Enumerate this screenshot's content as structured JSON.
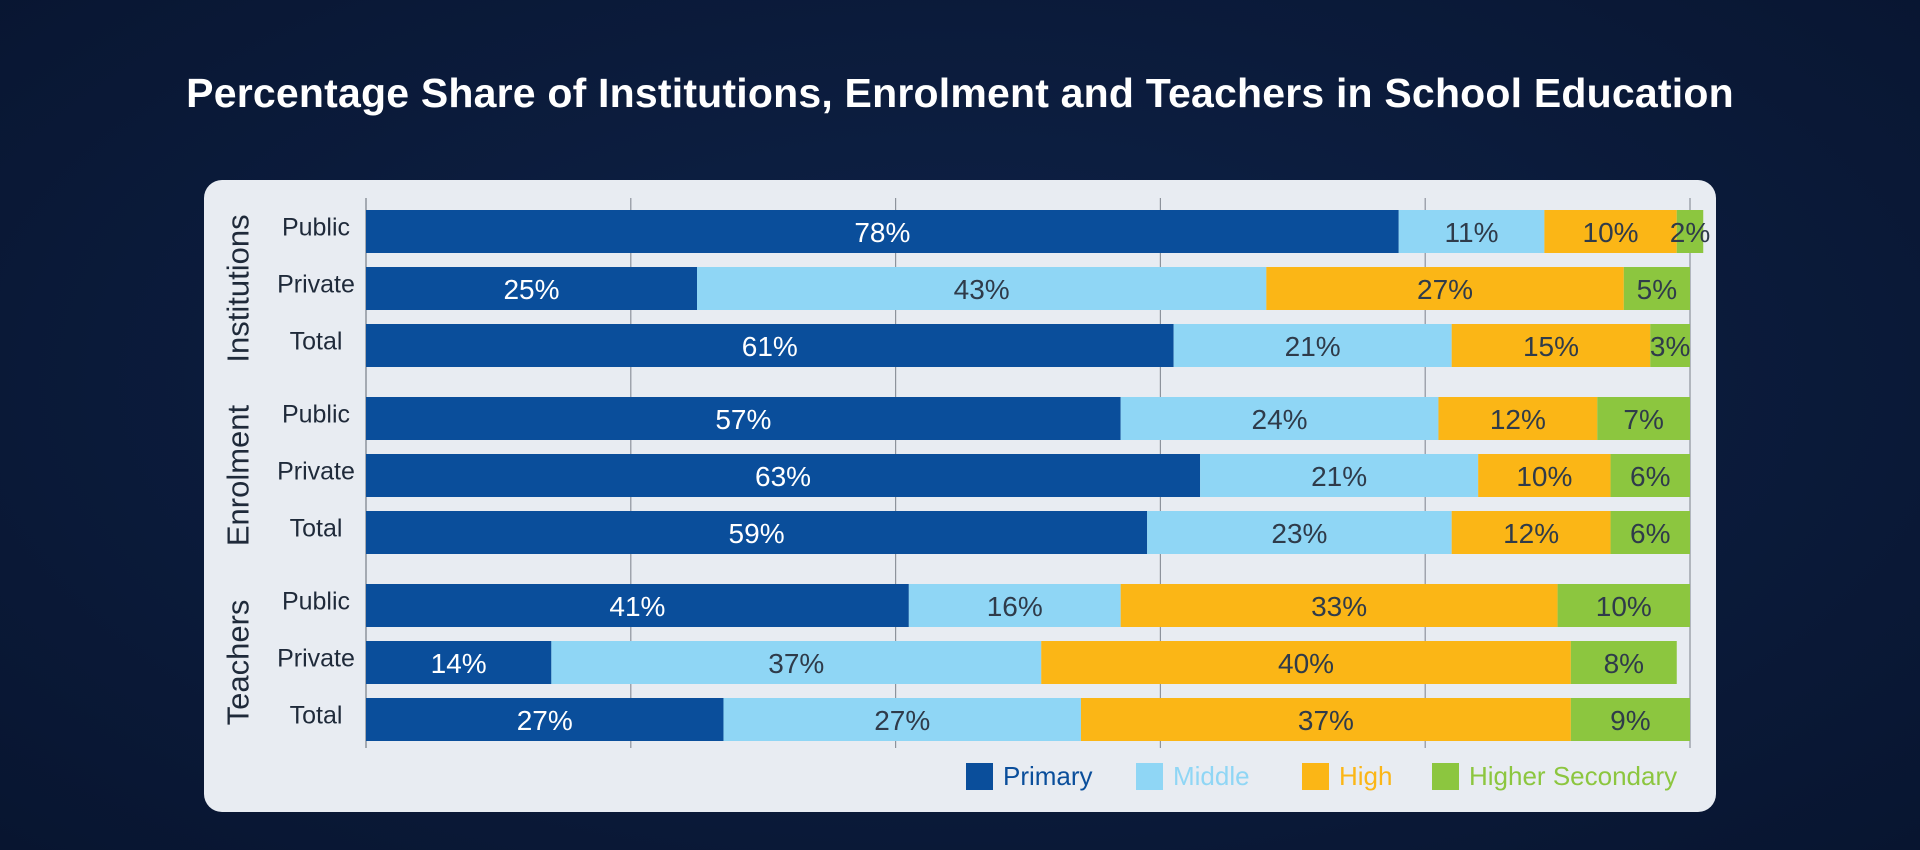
{
  "title": "Percentage Share of Institutions, Enrolment and Teachers in School Education",
  "colors": {
    "Primary": "#0a4e9b",
    "Middle": "#8fd6f5",
    "High": "#fbb616",
    "Higher Secondary": "#8cc63f"
  },
  "chart_data": {
    "type": "bar",
    "orientation": "horizontal",
    "stacked": true,
    "unit": "%",
    "xlim": [
      0,
      100
    ],
    "grid": true,
    "legend_position": "bottom-right",
    "series_names": [
      "Primary",
      "Middle",
      "High",
      "Higher Secondary"
    ],
    "groups": [
      {
        "name": "Institutions",
        "rows": [
          {
            "label": "Public",
            "values": [
              78,
              11,
              10,
              2
            ]
          },
          {
            "label": "Private",
            "values": [
              25,
              43,
              27,
              5
            ]
          },
          {
            "label": "Total",
            "values": [
              61,
              21,
              15,
              3
            ]
          }
        ]
      },
      {
        "name": "Enrolment",
        "rows": [
          {
            "label": "Public",
            "values": [
              57,
              24,
              12,
              7
            ]
          },
          {
            "label": "Private",
            "values": [
              63,
              21,
              10,
              6
            ]
          },
          {
            "label": "Total",
            "values": [
              59,
              23,
              12,
              6
            ]
          }
        ]
      },
      {
        "name": "Teachers",
        "rows": [
          {
            "label": "Public",
            "values": [
              41,
              16,
              33,
              10
            ]
          },
          {
            "label": "Private",
            "values": [
              14,
              37,
              40,
              8
            ]
          },
          {
            "label": "Total",
            "values": [
              27,
              27,
              37,
              9
            ]
          }
        ]
      }
    ]
  }
}
